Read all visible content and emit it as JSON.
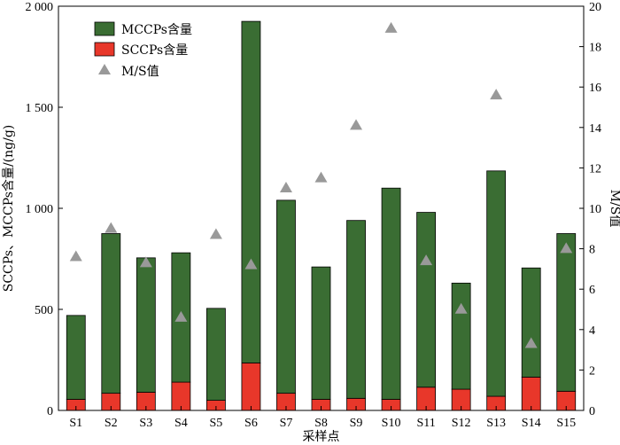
{
  "chart_data": {
    "type": "bar",
    "stacked": true,
    "categories": [
      "S1",
      "S2",
      "S3",
      "S4",
      "S5",
      "S6",
      "S7",
      "S8",
      "S9",
      "S10",
      "S11",
      "S12",
      "S13",
      "S14",
      "S15"
    ],
    "series": [
      {
        "name": "SCCPs含量",
        "axis": "left",
        "color": "#e8372a",
        "values": [
          55,
          85,
          90,
          140,
          50,
          235,
          85,
          55,
          60,
          55,
          115,
          105,
          70,
          165,
          95
        ]
      },
      {
        "name": "MCCPs含量",
        "axis": "left",
        "color": "#3a6d33",
        "values": [
          415,
          790,
          665,
          640,
          455,
          1690,
          955,
          655,
          880,
          1045,
          865,
          525,
          1115,
          540,
          780
        ]
      },
      {
        "name": "M/S值",
        "axis": "right",
        "type": "scatter",
        "color": "#999999",
        "values": [
          7.6,
          9.0,
          7.3,
          4.6,
          8.7,
          7.2,
          11.0,
          11.5,
          14.1,
          18.9,
          7.4,
          5.0,
          15.6,
          3.3,
          8.0
        ]
      }
    ],
    "xlabel": "采样点",
    "ylabel": "SCCPs、MCCPs含量/(ng/g)",
    "y2label": "M/S值",
    "ylim": [
      0,
      2000
    ],
    "y2lim": [
      0,
      20
    ],
    "yticks": [
      "0",
      "500",
      "1 000",
      "1 500",
      "2 000"
    ],
    "y2ticks": [
      "0",
      "2",
      "4",
      "6",
      "8",
      "10",
      "12",
      "14",
      "16",
      "18",
      "20"
    ],
    "legend": {
      "position": "top-left",
      "entries": [
        "MCCPs含量",
        "SCCPs含量",
        "M/S值"
      ]
    },
    "grid": false
  }
}
